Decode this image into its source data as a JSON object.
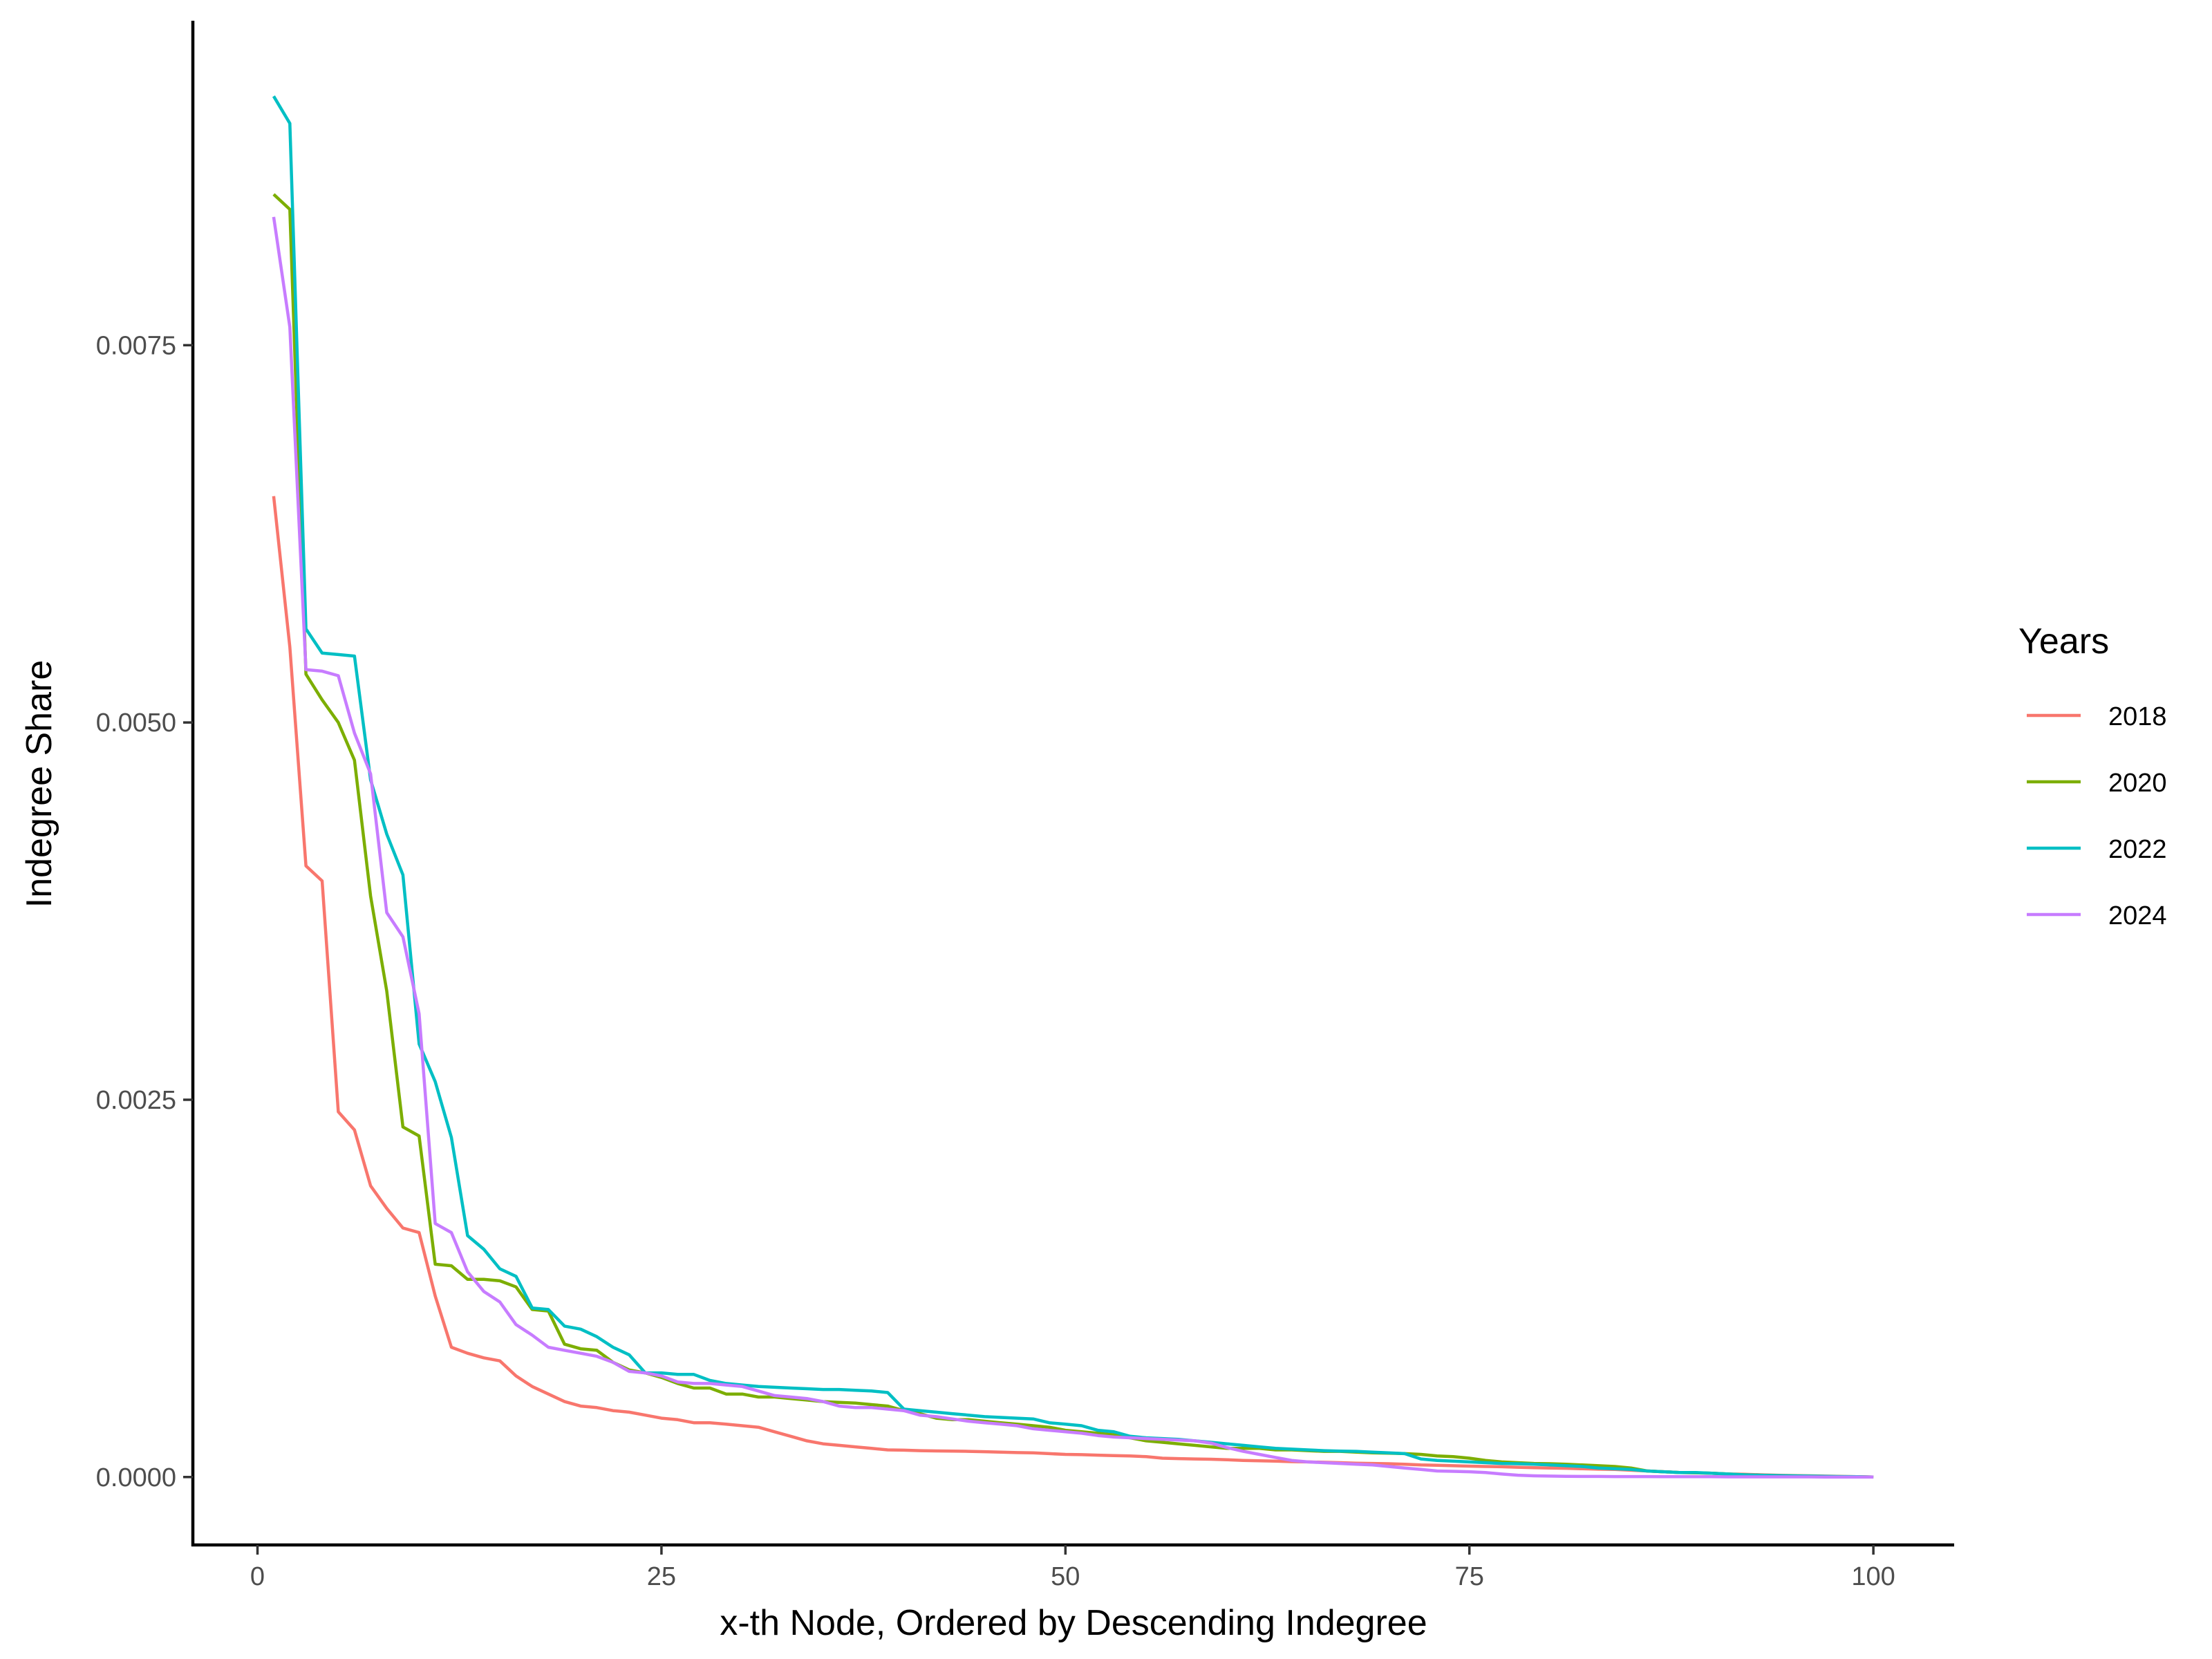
{
  "chart_data": {
    "type": "line",
    "xlabel": "x-th Node, Ordered by Descending Indegree",
    "ylabel": "Indegree Share",
    "xlim": [
      -4,
      105
    ],
    "ylim": [
      -0.00045,
      0.00965
    ],
    "x_ticks": [
      0,
      25,
      50,
      75,
      100
    ],
    "x_tick_labels": [
      "0",
      "25",
      "50",
      "75",
      "100"
    ],
    "y_ticks": [
      0,
      0.0025,
      0.005,
      0.0075
    ],
    "y_tick_labels": [
      "0.0000",
      "0.0025",
      "0.0050",
      "0.0075"
    ],
    "grid": false,
    "legend": {
      "title": "Years",
      "placement": "right"
    },
    "x": [
      1,
      2,
      3,
      4,
      5,
      6,
      7,
      8,
      9,
      10,
      11,
      12,
      13,
      14,
      15,
      16,
      17,
      18,
      19,
      20,
      21,
      22,
      23,
      24,
      25,
      26,
      27,
      28,
      29,
      30,
      31,
      32,
      33,
      34,
      35,
      36,
      37,
      38,
      39,
      40,
      41,
      42,
      43,
      44,
      45,
      46,
      47,
      48,
      49,
      50,
      51,
      52,
      53,
      54,
      55,
      56,
      57,
      58,
      59,
      60,
      61,
      62,
      63,
      64,
      65,
      66,
      67,
      68,
      69,
      70,
      71,
      72,
      73,
      74,
      75,
      76,
      77,
      78,
      79,
      80,
      81,
      82,
      83,
      84,
      85,
      86,
      87,
      88,
      89,
      90,
      91,
      92,
      93,
      94,
      95,
      96,
      97,
      98,
      99,
      100
    ],
    "series": [
      {
        "name": "2018",
        "color": "#F8766D",
        "values": [
          0.0065,
          0.0055,
          0.00405,
          0.00395,
          0.00242,
          0.0023,
          0.00193,
          0.00178,
          0.00165,
          0.00162,
          0.0012,
          0.00086,
          0.00082,
          0.00079,
          0.00077,
          0.00067,
          0.0006,
          0.00055,
          0.0005,
          0.00047,
          0.00046,
          0.00044,
          0.00043,
          0.00041,
          0.00039,
          0.00038,
          0.00036,
          0.00036,
          0.00035,
          0.00034,
          0.00033,
          0.0003,
          0.00027,
          0.00024,
          0.00022,
          0.00021,
          0.0002,
          0.00019,
          0.00018,
          0.000178,
          0.000175,
          0.000173,
          0.000172,
          0.00017,
          0.000168,
          0.000165,
          0.000162,
          0.00016,
          0.000155,
          0.00015,
          0.000148,
          0.000145,
          0.000142,
          0.00014,
          0.000135,
          0.000125,
          0.000122,
          0.00012,
          0.000118,
          0.000115,
          0.00011,
          0.000108,
          0.000105,
          0.000102,
          0.0001,
          9.8e-05,
          9.5e-05,
          9.2e-05,
          9e-05,
          8.8e-05,
          8.5e-05,
          8e-05,
          7.8e-05,
          7.5e-05,
          7.2e-05,
          7e-05,
          6.8e-05,
          6.5e-05,
          6.2e-05,
          6e-05,
          5.8e-05,
          5.5e-05,
          5.2e-05,
          5e-05,
          4.5e-05,
          4e-05,
          3.5e-05,
          3e-05,
          2.8e-05,
          2.5e-05,
          2e-05,
          1.8e-05,
          1.5e-05,
          1.2e-05,
          1e-05,
          8e-06,
          6e-06,
          4e-06,
          2e-06,
          0.0
        ]
      },
      {
        "name": "2020",
        "color": "#7CAE00",
        "values": [
          0.0085,
          0.0084,
          0.00532,
          0.00515,
          0.005,
          0.00475,
          0.00385,
          0.00322,
          0.00232,
          0.00226,
          0.00141,
          0.0014,
          0.00131,
          0.00131,
          0.0013,
          0.00126,
          0.00111,
          0.0011,
          0.00088,
          0.00085,
          0.00084,
          0.00076,
          0.00071,
          0.00069,
          0.00066,
          0.00062,
          0.00059,
          0.00059,
          0.00055,
          0.00055,
          0.00053,
          0.00053,
          0.00052,
          0.00051,
          0.0005,
          0.000495,
          0.00049,
          0.00048,
          0.00047,
          0.00044,
          0.00042,
          0.00039,
          0.00038,
          0.00038,
          0.00037,
          0.00036,
          0.00035,
          0.00034,
          0.00033,
          0.00031,
          0.0003,
          0.00029,
          0.00028,
          0.00026,
          0.00024,
          0.00023,
          0.00022,
          0.00021,
          0.0002,
          0.00019,
          0.00019,
          0.00019,
          0.00018,
          0.00018,
          0.000175,
          0.00017,
          0.00017,
          0.000165,
          0.00016,
          0.000158,
          0.000155,
          0.00015,
          0.00014,
          0.000135,
          0.000125,
          0.00011,
          0.0001,
          9.5e-05,
          9e-05,
          8.8e-05,
          8.5e-05,
          8e-05,
          7.5e-05,
          7e-05,
          6e-05,
          4e-05,
          3.5e-05,
          3e-05,
          2.8e-05,
          2.5e-05,
          2e-05,
          1.5e-05,
          1.2e-05,
          1e-05,
          8e-06,
          6e-06,
          5e-06,
          3e-06,
          2e-06,
          0.0
        ]
      },
      {
        "name": "2022",
        "color": "#00BFC4",
        "values": [
          0.00915,
          0.00897,
          0.00562,
          0.00546,
          0.00545,
          0.00544,
          0.00462,
          0.00426,
          0.00399,
          0.00287,
          0.00262,
          0.00225,
          0.0016,
          0.00151,
          0.00138,
          0.00133,
          0.00112,
          0.00111,
          0.001,
          0.00098,
          0.00093,
          0.00086,
          0.00081,
          0.00069,
          0.00069,
          0.00068,
          0.00068,
          0.00064,
          0.00062,
          0.00061,
          0.0006,
          0.000595,
          0.00059,
          0.000585,
          0.00058,
          0.00058,
          0.000575,
          0.00057,
          0.00056,
          0.00045,
          0.00044,
          0.00043,
          0.00042,
          0.00041,
          0.0004,
          0.000395,
          0.00039,
          0.000385,
          0.00036,
          0.00035,
          0.00034,
          0.00031,
          0.0003,
          0.00027,
          0.00026,
          0.000255,
          0.00025,
          0.00024,
          0.00023,
          0.00022,
          0.00021,
          0.0002,
          0.00019,
          0.000185,
          0.00018,
          0.000175,
          0.000172,
          0.00017,
          0.000165,
          0.00016,
          0.000155,
          0.00012,
          0.00011,
          0.000105,
          0.0001,
          9.5e-05,
          9e-05,
          8.8e-05,
          8.5e-05,
          8e-05,
          7.5e-05,
          7e-05,
          6e-05,
          5.5e-05,
          5e-05,
          4e-05,
          3.5e-05,
          3e-05,
          3e-05,
          2.5e-05,
          2e-05,
          1.5e-05,
          1.2e-05,
          1e-05,
          8e-06,
          6e-06,
          5e-06,
          3e-06,
          2e-06,
          0.0
        ]
      },
      {
        "name": "2024",
        "color": "#C77CFF",
        "values": [
          0.00835,
          0.00762,
          0.00535,
          0.00534,
          0.00531,
          0.00493,
          0.00466,
          0.00374,
          0.00358,
          0.00307,
          0.00168,
          0.00162,
          0.00136,
          0.00123,
          0.00116,
          0.00101,
          0.00094,
          0.00086,
          0.00084,
          0.00082,
          0.0008,
          0.00076,
          0.0007,
          0.00069,
          0.00067,
          0.00063,
          0.00062,
          0.00062,
          0.00061,
          0.0006,
          0.00057,
          0.00054,
          0.00053,
          0.00052,
          0.0005,
          0.00047,
          0.00046,
          0.00046,
          0.00045,
          0.00044,
          0.00041,
          0.0004,
          0.000385,
          0.00037,
          0.00036,
          0.00035,
          0.00034,
          0.00032,
          0.00031,
          0.0003,
          0.00029,
          0.000275,
          0.000265,
          0.00026,
          0.000255,
          0.00025,
          0.000245,
          0.00024,
          0.000225,
          0.000195,
          0.00017,
          0.00015,
          0.00013,
          0.00011,
          0.0001,
          9.5e-05,
          9e-05,
          8.5e-05,
          8e-05,
          7e-05,
          6e-05,
          5e-05,
          4e-05,
          3.8e-05,
          3.5e-05,
          3e-05,
          2e-05,
          1.2e-05,
          8e-06,
          6e-06,
          5e-06,
          4e-06,
          4e-06,
          3e-06,
          3e-06,
          3e-06,
          2e-06,
          2e-06,
          2e-06,
          2e-06,
          1e-06,
          1e-06,
          1e-06,
          1e-06,
          1e-06,
          1e-06,
          0.0,
          0.0,
          0.0,
          0.0
        ]
      }
    ]
  }
}
